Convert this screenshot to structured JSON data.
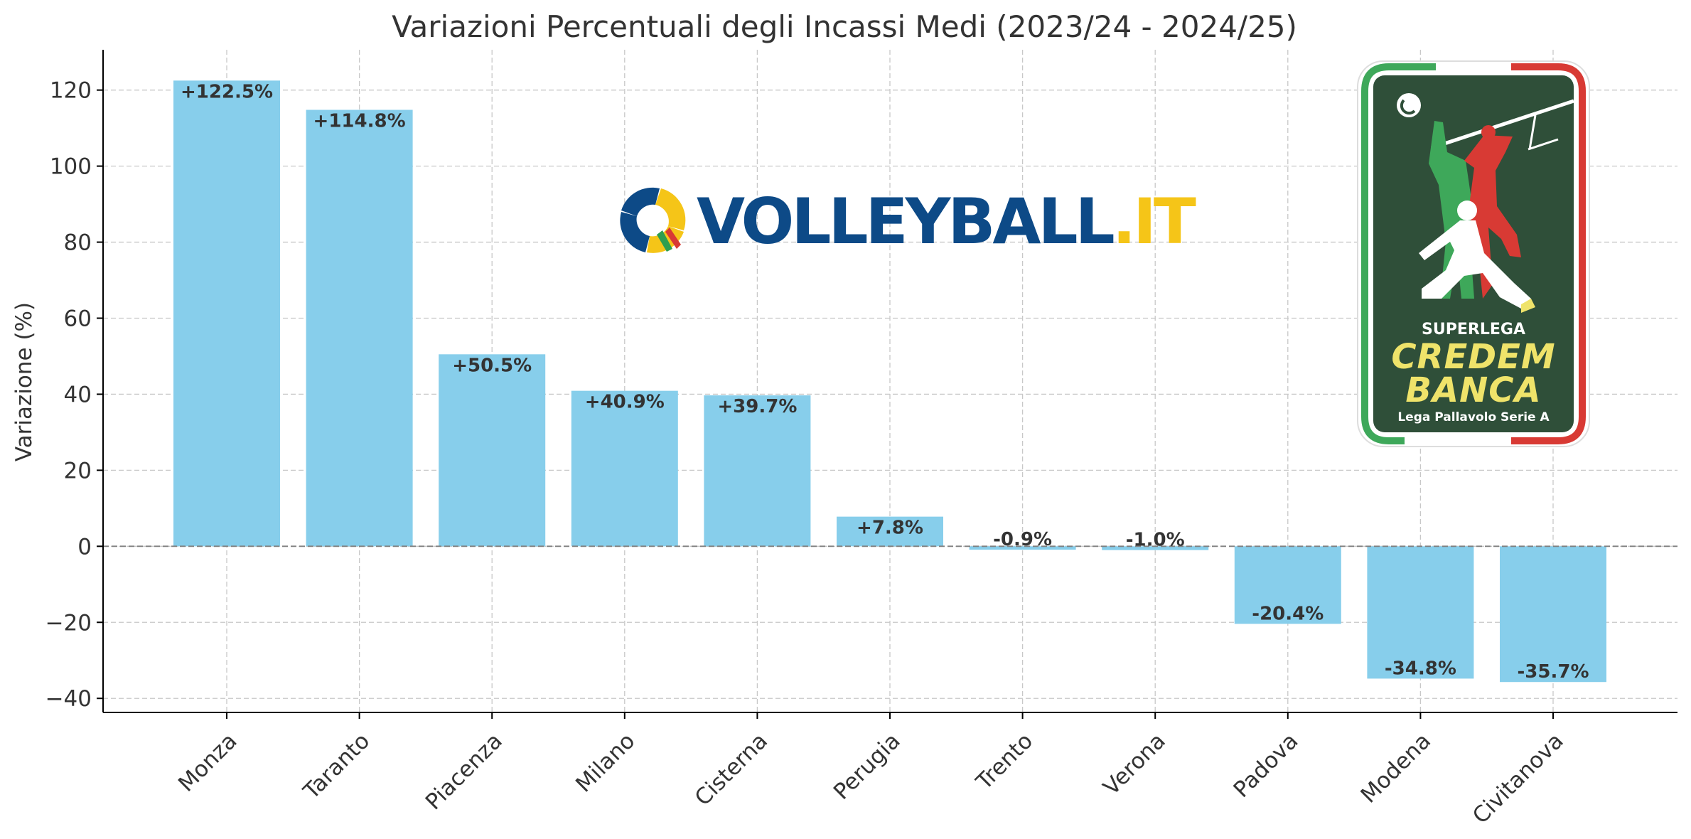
{
  "chart_data": {
    "type": "bar",
    "title": "Variazioni Percentuali degli Incassi Medi (2023/24 - 2024/25)",
    "xlabel": "",
    "ylabel": "Variazione (%)",
    "categories": [
      "Monza",
      "Taranto",
      "Piacenza",
      "Milano",
      "Cisterna",
      "Perugia",
      "Trento",
      "Verona",
      "Padova",
      "Modena",
      "Civitanova"
    ],
    "values": [
      122.5,
      114.8,
      50.5,
      40.9,
      39.7,
      7.8,
      -0.9,
      -1.0,
      -20.4,
      -34.8,
      -35.7
    ],
    "data_labels": [
      "+122.5%",
      "+114.8%",
      "+50.5%",
      "+40.9%",
      "+39.7%",
      "+7.8%",
      "-0.9%",
      "-1.0%",
      "-20.4%",
      "-34.8%",
      "-35.7%"
    ],
    "ylim": [
      -43.7,
      130.6
    ],
    "yticks": [
      -40,
      -20,
      0,
      20,
      40,
      60,
      80,
      100,
      120
    ],
    "ytick_labels": [
      "−40",
      "−20",
      "0",
      "20",
      "40",
      "60",
      "80",
      "100",
      "120"
    ],
    "grid": true,
    "zero_line": true,
    "colors": {
      "bar": "#87ceeb",
      "grid": "#c8c8c8",
      "axis": "#000000",
      "text": "#333333",
      "zero_line": "#808080"
    }
  },
  "logos": {
    "volleyball": {
      "name": "volleyball-it-logo",
      "main": "VOLLEYBALL",
      "suffix": ".IT",
      "colors": {
        "main": "#0d4a87",
        "suffix": "#f5c518"
      }
    },
    "superlega": {
      "name": "superlega-credem-banca-logo",
      "line1": "SUPERLEGA",
      "line2": "CREDEM",
      "line3": "BANCA",
      "line4": "Lega Pallavolo Serie A",
      "colors": {
        "background": "#2f4f39",
        "green": "#3ea85a",
        "red": "#d83a34",
        "yellow": "#efe36a"
      }
    }
  }
}
